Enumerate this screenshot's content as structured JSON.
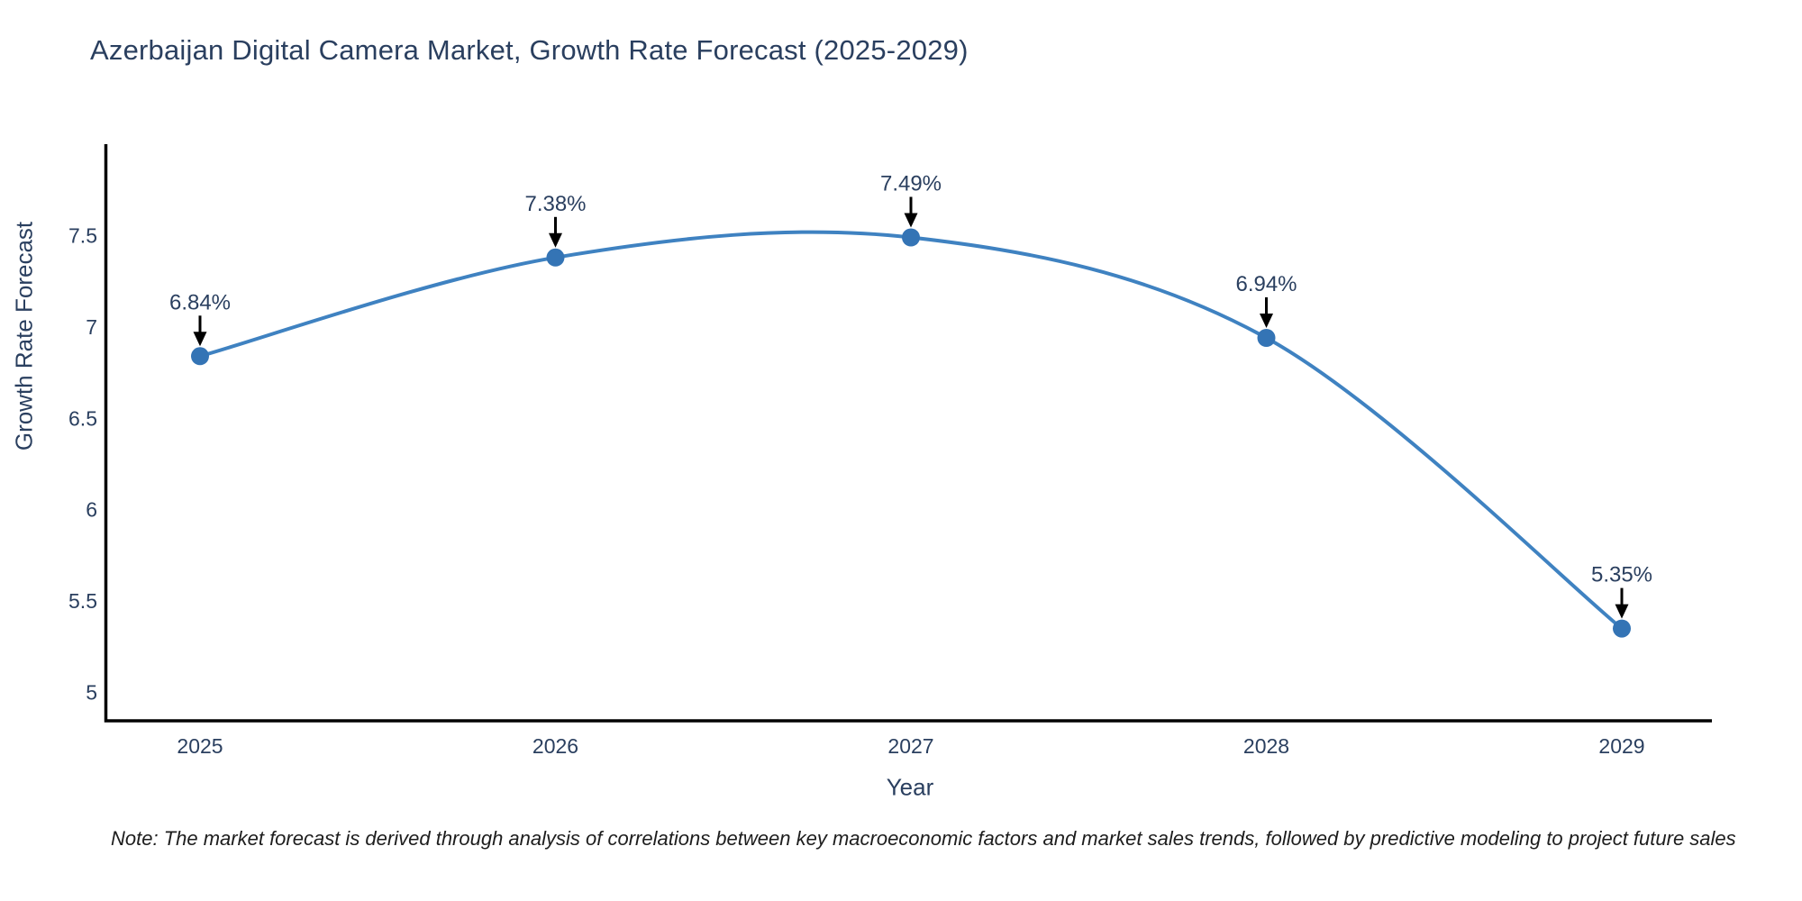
{
  "title": "Azerbaijan Digital Camera Market, Growth Rate Forecast (2025-2029)",
  "note": "Note: The market forecast is derived through analysis of correlations between key macroeconomic factors and market sales trends, followed by predictive modeling to project future sales",
  "chart_data": {
    "type": "line",
    "title": "Azerbaijan Digital Camera Market, Growth Rate Forecast (2025-2029)",
    "x": [
      "2025",
      "2026",
      "2027",
      "2028",
      "2029"
    ],
    "series": [
      {
        "name": "Growth Rate Forecast",
        "values": [
          6.84,
          7.38,
          7.49,
          6.94,
          5.35
        ]
      }
    ],
    "point_labels": [
      "6.84%",
      "7.38%",
      "7.49%",
      "6.94%",
      "5.35%"
    ],
    "xlabel": "Year",
    "ylabel": "Growth Rate Forecast",
    "yticks": [
      5,
      5.5,
      6,
      6.5,
      7,
      7.5
    ],
    "ylim": [
      4.845,
      8.0
    ],
    "grid": false,
    "legend_position": "none",
    "line_shape": "spline",
    "annotations_style": "value labels with down arrows above each point",
    "colors": {
      "line": "#3f82c1",
      "marker": "#3474b5",
      "axis": "#000000",
      "tick_text": "#2a3f5f",
      "annotation_text": "#2a3f5f",
      "annotation_arrow": "#000000",
      "background": "#ffffff"
    }
  }
}
